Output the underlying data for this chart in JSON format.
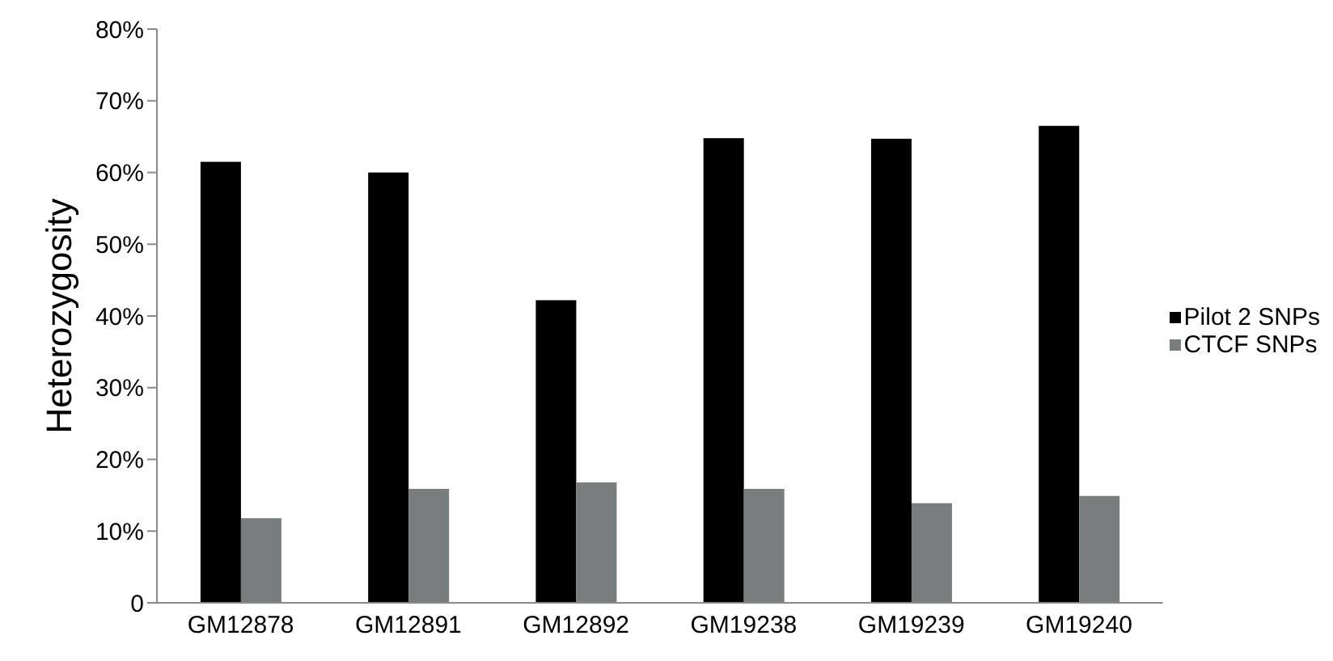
{
  "chart_data": {
    "type": "bar",
    "ylabel": "Heterozygosity",
    "categories": [
      "GM12878",
      "GM12891",
      "GM12892",
      "GM19238",
      "GM19239",
      "GM19240"
    ],
    "series": [
      {
        "name": "Pilot 2 SNPs",
        "color": "#000000",
        "values": [
          61.5,
          60.0,
          42.2,
          64.8,
          64.7,
          66.5
        ]
      },
      {
        "name": "CTCF SNPs",
        "color": "#7a7d7e",
        "values": [
          11.8,
          15.9,
          16.8,
          15.9,
          13.9,
          14.9
        ]
      }
    ],
    "ylim": [
      0,
      80
    ],
    "yticks": [
      0,
      {
        "value": 10,
        "label": "10%"
      },
      {
        "value": 20,
        "label": "20%"
      },
      {
        "value": 30,
        "label": "30%"
      },
      {
        "value": 40,
        "label": "40%"
      },
      {
        "value": 50,
        "label": "50%"
      },
      {
        "value": 60,
        "label": "60%"
      },
      {
        "value": 70,
        "label": "70%"
      },
      {
        "value": 80,
        "label": "80%"
      }
    ],
    "grid": false,
    "legend": "right"
  }
}
